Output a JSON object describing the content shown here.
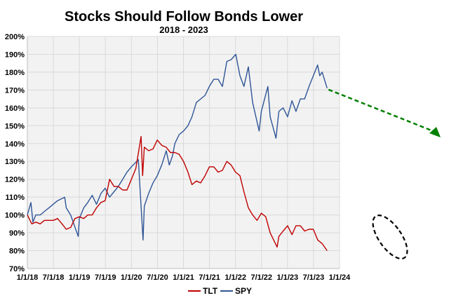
{
  "chart_data": {
    "type": "line",
    "title": "Stocks Should Follow Bonds Lower",
    "subtitle": "2018 - 2023",
    "xlabel": "",
    "ylabel": "",
    "xlim": [
      "2018-01-01",
      "2024-01-01"
    ],
    "ylim": [
      70,
      200
    ],
    "y_ticks": [
      "70%",
      "80%",
      "90%",
      "100%",
      "110%",
      "120%",
      "130%",
      "140%",
      "150%",
      "160%",
      "170%",
      "180%",
      "190%",
      "200%"
    ],
    "x_ticks": [
      "1/1/18",
      "7/1/18",
      "1/1/19",
      "7/1/19",
      "1/1/20",
      "7/1/20",
      "1/1/21",
      "7/1/21",
      "1/1/22",
      "7/1/22",
      "1/1/23",
      "7/1/23",
      "1/1/24"
    ],
    "grid": true,
    "legend_placement": "bottom",
    "background": "#f2f2f2",
    "series": [
      {
        "name": "TLT",
        "color": "#c00000",
        "x": [
          "2018-01-01",
          "2018-02-01",
          "2018-03-01",
          "2018-04-01",
          "2018-05-01",
          "2018-06-01",
          "2018-07-01",
          "2018-08-01",
          "2018-09-01",
          "2018-10-01",
          "2018-11-01",
          "2018-12-01",
          "2019-01-01",
          "2019-02-01",
          "2019-03-01",
          "2019-04-01",
          "2019-05-01",
          "2019-06-01",
          "2019-07-01",
          "2019-08-01",
          "2019-09-01",
          "2019-10-01",
          "2019-11-01",
          "2019-12-01",
          "2020-01-01",
          "2020-02-01",
          "2020-03-09",
          "2020-03-20",
          "2020-04-01",
          "2020-05-01",
          "2020-06-01",
          "2020-07-01",
          "2020-08-01",
          "2020-09-01",
          "2020-10-01",
          "2020-11-01",
          "2020-12-01",
          "2021-01-01",
          "2021-02-01",
          "2021-03-01",
          "2021-04-01",
          "2021-05-01",
          "2021-06-01",
          "2021-07-01",
          "2021-08-01",
          "2021-09-01",
          "2021-10-01",
          "2021-11-01",
          "2021-12-01",
          "2022-01-01",
          "2022-02-01",
          "2022-03-01",
          "2022-04-01",
          "2022-05-01",
          "2022-06-01",
          "2022-07-01",
          "2022-08-01",
          "2022-09-01",
          "2022-10-20",
          "2022-11-01",
          "2022-12-01",
          "2023-01-01",
          "2023-02-01",
          "2023-03-01",
          "2023-04-01",
          "2023-05-01",
          "2023-06-01",
          "2023-07-01",
          "2023-08-01",
          "2023-09-01",
          "2023-10-06"
        ],
        "values": [
          100,
          95,
          96,
          95,
          97,
          97,
          97,
          98,
          95,
          92,
          93,
          98,
          99,
          98,
          100,
          100,
          104,
          107,
          108,
          120,
          116,
          116,
          114,
          114,
          120,
          126,
          144,
          122,
          138,
          136,
          137,
          142,
          139,
          138,
          135,
          135,
          134,
          130,
          124,
          117,
          119,
          118,
          122,
          127,
          127,
          124,
          125,
          130,
          128,
          124,
          122,
          113,
          104,
          100,
          97,
          101,
          99,
          90,
          82,
          88,
          91,
          94,
          89,
          94,
          94,
          91,
          92,
          92,
          86,
          84,
          80
        ]
      },
      {
        "name": "SPY",
        "color": "#2f5597",
        "x": [
          "2018-01-01",
          "2018-01-26",
          "2018-02-09",
          "2018-03-01",
          "2018-04-01",
          "2018-05-01",
          "2018-06-01",
          "2018-07-01",
          "2018-08-01",
          "2018-09-20",
          "2018-10-01",
          "2018-11-01",
          "2018-12-24",
          "2019-01-01",
          "2019-02-01",
          "2019-03-01",
          "2019-04-01",
          "2019-05-01",
          "2019-06-01",
          "2019-07-01",
          "2019-08-01",
          "2019-09-01",
          "2019-10-01",
          "2019-11-01",
          "2019-12-01",
          "2020-01-01",
          "2020-02-19",
          "2020-03-23",
          "2020-04-01",
          "2020-05-01",
          "2020-06-01",
          "2020-07-01",
          "2020-08-01",
          "2020-09-02",
          "2020-09-23",
          "2020-10-15",
          "2020-11-01",
          "2020-12-01",
          "2021-01-01",
          "2021-02-01",
          "2021-03-01",
          "2021-04-01",
          "2021-05-01",
          "2021-06-01",
          "2021-07-01",
          "2021-08-01",
          "2021-09-01",
          "2021-10-01",
          "2021-11-01",
          "2021-12-01",
          "2022-01-03",
          "2022-02-01",
          "2022-03-01",
          "2022-04-01",
          "2022-05-01",
          "2022-06-16",
          "2022-07-01",
          "2022-08-16",
          "2022-09-01",
          "2022-10-12",
          "2022-11-01",
          "2022-12-01",
          "2023-01-01",
          "2023-02-01",
          "2023-03-01",
          "2023-04-01",
          "2023-05-01",
          "2023-06-01",
          "2023-07-31",
          "2023-08-15",
          "2023-09-01",
          "2023-10-06"
        ],
        "values": [
          100,
          107,
          96,
          100,
          100,
          102,
          104,
          106,
          108,
          110,
          104,
          100,
          88,
          98,
          104,
          107,
          111,
          106,
          112,
          115,
          110,
          113,
          116,
          120,
          124,
          127,
          131,
          86,
          105,
          112,
          118,
          122,
          128,
          136,
          128,
          133,
          140,
          145,
          147,
          150,
          155,
          163,
          165,
          167,
          172,
          176,
          176,
          172,
          186,
          187,
          190,
          178,
          172,
          183,
          163,
          147,
          158,
          172,
          155,
          143,
          158,
          160,
          155,
          164,
          158,
          165,
          165,
          172,
          184,
          178,
          180,
          171
        ]
      }
    ],
    "annotations": [
      {
        "type": "dashed-arrow",
        "color": "#008000",
        "from": [
          "2023-10-06",
          171
        ],
        "direction": "down-right"
      },
      {
        "type": "dashed-ellipse",
        "color": "#000000",
        "around": "TLT 2023 decline"
      }
    ]
  }
}
